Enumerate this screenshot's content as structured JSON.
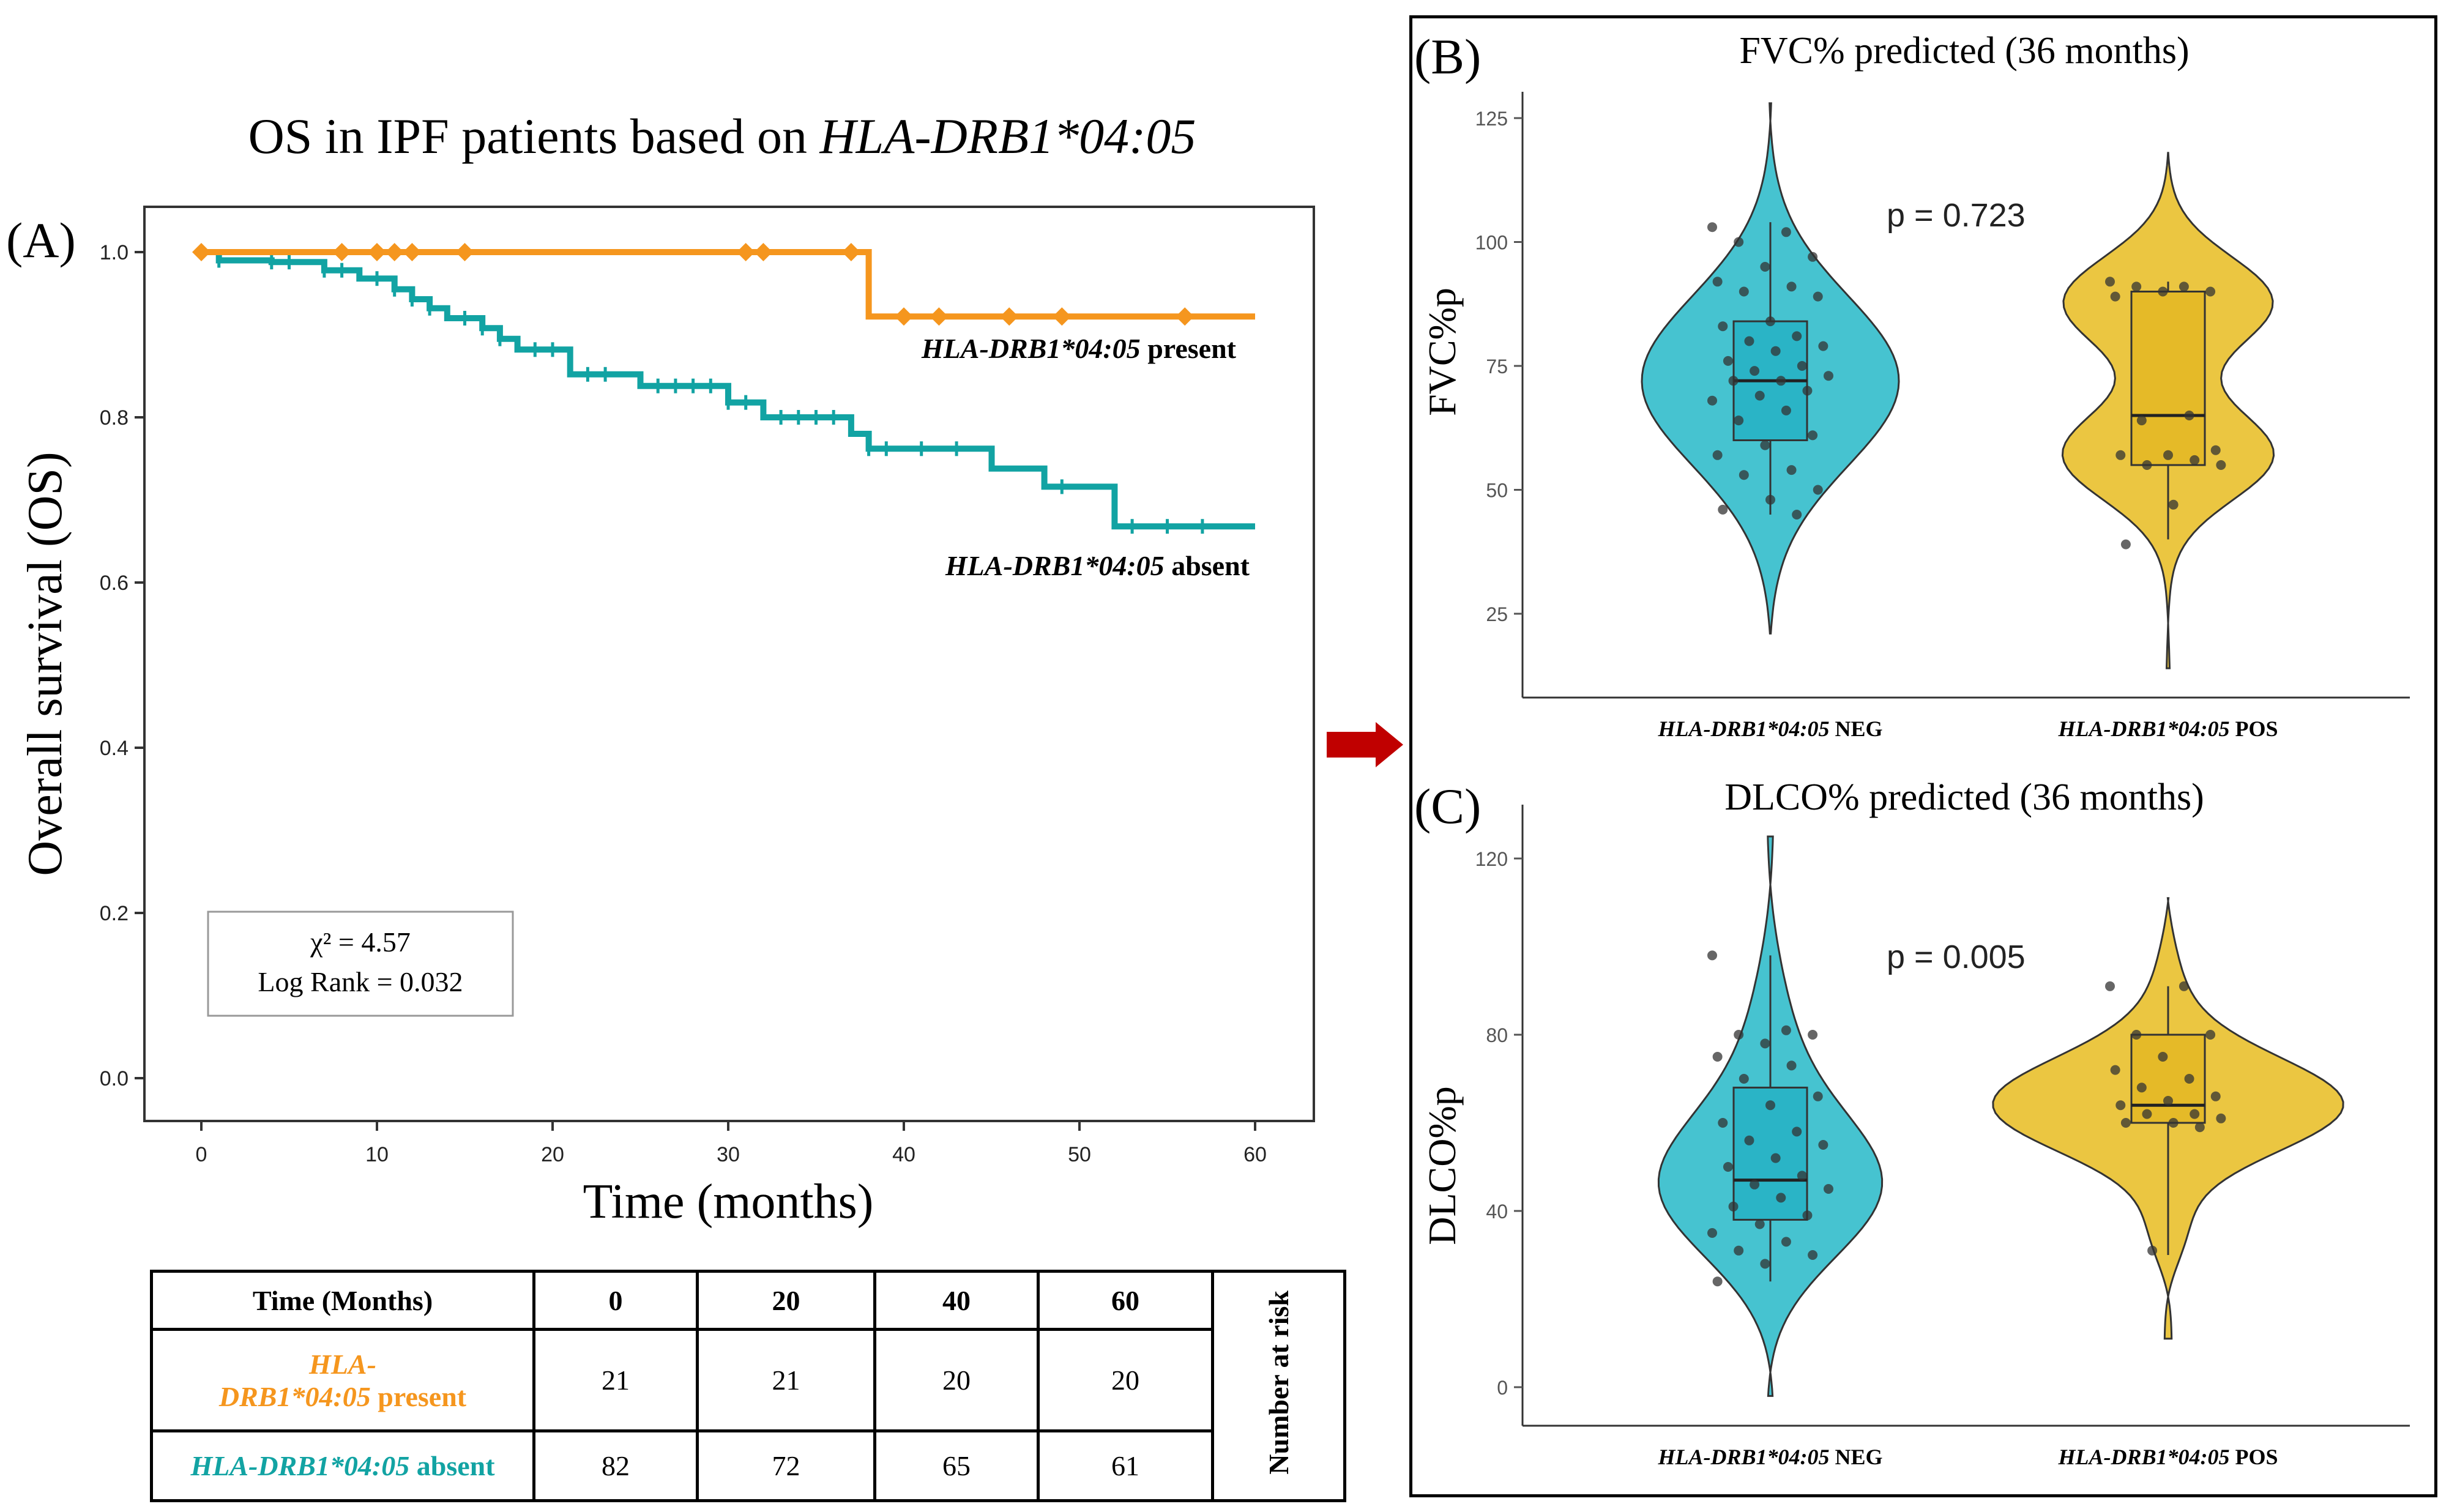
{
  "colors": {
    "present": "#F5961E",
    "absent": "#12A3A3",
    "neg_violin": "#46C3D0",
    "pos_violin": "#EBC641",
    "arrow": "#C00000"
  },
  "panel_a": {
    "panel_label": "(A)",
    "title_prefix": "OS in IPF patients based on ",
    "title_gene": "HLA-DRB1*04:05",
    "stats": {
      "chi": "χ² = 4.57",
      "logrank": "Log Rank = 0.032"
    },
    "legend": {
      "gene": "HLA-DRB1*04:05",
      "present": " present",
      "absent": " absent"
    }
  },
  "risk_table": {
    "header": [
      "Time (Months)",
      "0",
      "20",
      "40",
      "60"
    ],
    "row_present": {
      "gene_line1": "HLA-",
      "gene_line2": "DRB1*04:05",
      "suffix": " present",
      "values": [
        "21",
        "21",
        "20",
        "20"
      ]
    },
    "row_absent": {
      "gene": "HLA-DRB1*04:05",
      "suffix": " absent",
      "values": [
        "82",
        "72",
        "65",
        "61"
      ]
    },
    "side_label": "Number at risk"
  },
  "panel_b": {
    "panel_label": "(B)",
    "p_value": "p = 0.723"
  },
  "panel_c": {
    "panel_label": "(C)",
    "p_value": "p = 0.005"
  },
  "chart_data": [
    {
      "type": "line",
      "title": "OS in IPF patients based on HLA-DRB1*04:05",
      "xlabel": "Time (months)",
      "ylabel": "Overall survival (OS)",
      "xlim": [
        0,
        60
      ],
      "ylim": [
        0,
        1.0
      ],
      "xticks": [
        0,
        10,
        20,
        30,
        40,
        50,
        60
      ],
      "yticks": [
        "0.0",
        "0.2",
        "0.4",
        "0.6",
        "0.8",
        "1.0"
      ],
      "series": [
        {
          "name": "HLA-DRB1*04:05 present",
          "steps": [
            [
              0,
              1.0
            ],
            [
              38,
              1.0
            ],
            [
              38,
              0.922
            ],
            [
              60,
              0.922
            ]
          ],
          "censored": [
            0,
            8,
            10,
            11,
            12,
            15,
            31,
            32,
            37,
            40,
            42,
            46,
            49,
            56
          ]
        },
        {
          "name": "HLA-DRB1*04:05 absent",
          "steps": [
            [
              0,
              1.0
            ],
            [
              1,
              1.0
            ],
            [
              1,
              0.99
            ],
            [
              4,
              0.99
            ],
            [
              4,
              0.988
            ],
            [
              7,
              0.988
            ],
            [
              7,
              0.978
            ],
            [
              9,
              0.978
            ],
            [
              9,
              0.968
            ],
            [
              11,
              0.968
            ],
            [
              11,
              0.955
            ],
            [
              12,
              0.955
            ],
            [
              12,
              0.943
            ],
            [
              13,
              0.943
            ],
            [
              13,
              0.932
            ],
            [
              14,
              0.932
            ],
            [
              14,
              0.92
            ],
            [
              16,
              0.92
            ],
            [
              16,
              0.908
            ],
            [
              17,
              0.908
            ],
            [
              17,
              0.895
            ],
            [
              18,
              0.895
            ],
            [
              18,
              0.882
            ],
            [
              21,
              0.882
            ],
            [
              21,
              0.852
            ],
            [
              25,
              0.852
            ],
            [
              25,
              0.838
            ],
            [
              30,
              0.838
            ],
            [
              30,
              0.818
            ],
            [
              32,
              0.818
            ],
            [
              32,
              0.8
            ],
            [
              37,
              0.8
            ],
            [
              37,
              0.78
            ],
            [
              38,
              0.78
            ],
            [
              38,
              0.762
            ],
            [
              42,
              0.762
            ],
            [
              42,
              0.762
            ],
            [
              45,
              0.762
            ],
            [
              45,
              0.738
            ],
            [
              48,
              0.738
            ],
            [
              48,
              0.716
            ],
            [
              52,
              0.716
            ],
            [
              52,
              0.668
            ],
            [
              60,
              0.668
            ]
          ],
          "censored": [
            1,
            4,
            5,
            7,
            8,
            10,
            11,
            12,
            13,
            15,
            16,
            17,
            19,
            20,
            22,
            23,
            26,
            27,
            28,
            29,
            30,
            31,
            33,
            34,
            35,
            36,
            38,
            39,
            41,
            43,
            49,
            53,
            55,
            57
          ]
        }
      ]
    },
    {
      "type": "violin",
      "title": "FVC% predicted (36 months)",
      "ylabel": "FVC%p",
      "yticks": [
        25,
        50,
        75,
        100,
        125
      ],
      "ylim": [
        10,
        132
      ],
      "groups": [
        {
          "label_gene": "HLA-DRB1*04:05",
          "label_suffix": " NEG",
          "box": {
            "min": 45,
            "q1": 60,
            "median": 72,
            "q3": 84,
            "max": 104
          },
          "violin_range": [
            21,
            128
          ],
          "points": [
            103,
            102,
            100,
            97,
            95,
            92,
            91,
            90,
            89,
            84,
            83,
            81,
            80,
            79,
            78,
            76,
            75,
            74,
            73,
            72,
            72,
            70,
            69,
            68,
            66,
            64,
            61,
            59,
            57,
            54,
            53,
            50,
            48,
            46,
            45
          ]
        },
        {
          "label_gene": "HLA-DRB1*04:05",
          "label_suffix": "  POS",
          "box": {
            "min": 40,
            "q1": 55,
            "median": 65,
            "q3": 90,
            "max": 92
          },
          "violin_range": [
            14,
            118
          ],
          "points": [
            92,
            91,
            91,
            90,
            90,
            89,
            65,
            64,
            58,
            57,
            57,
            56,
            55,
            55,
            47,
            39
          ]
        }
      ]
    },
    {
      "type": "violin",
      "title": "DLCO% predicted (36 months)",
      "ylabel": "DLCO%p",
      "yticks": [
        0,
        40,
        80,
        120
      ],
      "ylim": [
        -5,
        126
      ],
      "groups": [
        {
          "label_gene": "HLA-DRB1*04:05",
          "label_suffix": "  NEG",
          "box": {
            "min": 24,
            "q1": 38,
            "median": 47,
            "q3": 68,
            "max": 98
          },
          "violin_range": [
            -2,
            125
          ],
          "points": [
            98,
            81,
            80,
            80,
            78,
            75,
            73,
            70,
            66,
            64,
            60,
            58,
            56,
            55,
            52,
            50,
            48,
            46,
            45,
            43,
            41,
            39,
            37,
            35,
            33,
            31,
            30,
            28,
            24
          ]
        },
        {
          "label_gene": "HLA-DRB1*04:05",
          "label_suffix": " POS",
          "box": {
            "min": 30,
            "q1": 60,
            "median": 64,
            "q3": 80,
            "max": 91
          },
          "violin_range": [
            11,
            111
          ],
          "points": [
            91,
            91,
            80,
            80,
            75,
            72,
            70,
            68,
            66,
            65,
            64,
            62,
            62,
            61,
            60,
            60,
            59,
            31
          ]
        }
      ]
    }
  ]
}
